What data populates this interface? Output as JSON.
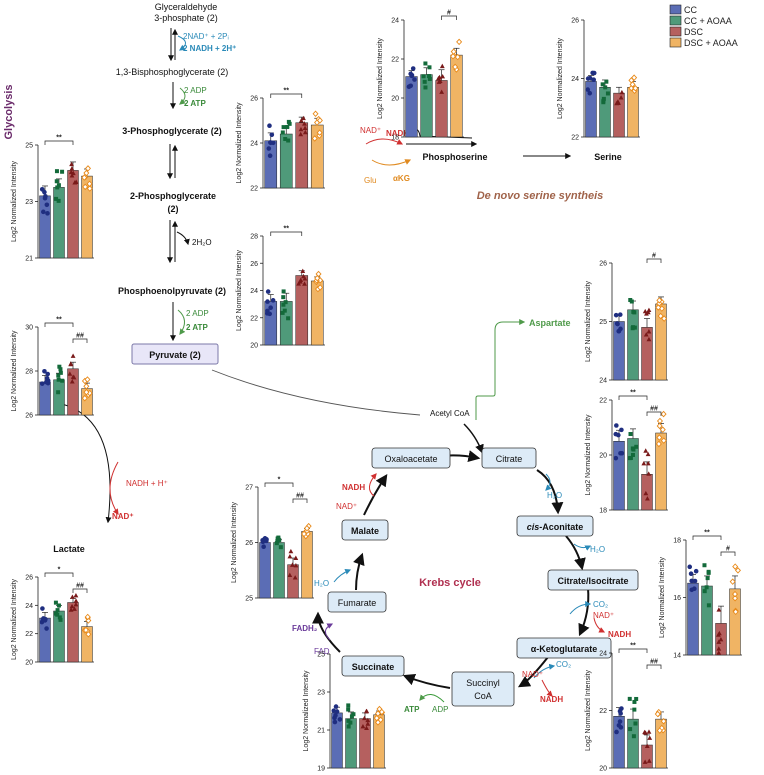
{
  "legend": [
    {
      "label": "CC",
      "color": "#5b6db5"
    },
    {
      "label": "CC + AOAA",
      "color": "#4f9a7a"
    },
    {
      "label": "DSC",
      "color": "#b5605f"
    },
    {
      "label": "DSC + AOAA",
      "color": "#f0b464"
    }
  ],
  "section_labels": {
    "glycolysis": "Glycolysis",
    "krebs": "Krebs cycle",
    "serine": "De novo serine syntheis"
  },
  "glycolysis": {
    "g3p_line1": "Glyceraldehyde",
    "g3p_line2": "3-phosphate (2)",
    "cofactor_in": "2NAD⁺ + 2Pᵢ",
    "cofactor_out": "2 NADH + 2H⁺",
    "bpg": "1,3-Bisphosphoglycerate (2)",
    "adp1": "2 ADP",
    "atp1": "2 ATP",
    "pg3": "3-Phosphoglycerate (2)",
    "pg2_line1": "2-Phosphoglycerate",
    "pg2_line2": "(2)",
    "water": "2H₂O",
    "pep": "Phosphoenolpyruvate (2)",
    "adp2": "2 ADP",
    "atp2": "2 ATP",
    "pyruvate": "Pyruvate (2)",
    "nadh_h": "NADH + H⁺",
    "nad": "NAD⁺",
    "lactate": "Lactate"
  },
  "serine_path": {
    "nad": "NAD⁺",
    "nadh": "NADH",
    "glu": "Glu",
    "akg": "αKG",
    "phosphoserine": "Phosphoserine",
    "serine": "Serine",
    "aspartate": "Aspartate",
    "acetyl_coa": "Acetyl CoA"
  },
  "krebs_nodes": {
    "oxaloacetate": "Oxaloacetate",
    "citrate": "Citrate",
    "cis_aconitate_prefix": "cis",
    "cis_aconitate_suffix": "-Aconitate",
    "citrate_isocitrate": "Citrate/Isocitrate",
    "aketoglutarate": "α-Ketoglutarate",
    "succinyl_line1": "Succinyl",
    "succinyl_line2": "CoA",
    "succinate": "Succinate",
    "fumarate": "Fumarate",
    "malate": "Malate"
  },
  "krebs_cofactors": {
    "nadh_top": "NADH",
    "nad_top": "NAD⁺",
    "h2o_citrate": "H₂O",
    "h2o_aconitate": "H₂O",
    "co2_1": "CO₂",
    "nad_1": "NAD⁺",
    "nadh_1": "NADH",
    "co2_2": "CO₂",
    "nad_2": "NAD⁺",
    "nadh_2": "NADH",
    "atp": "ATP",
    "adp": "ADP",
    "fad": "FAD",
    "fadh2": "FADH₂",
    "h2o_fumarate": "H₂O"
  },
  "y_axis_label": "Log2 Normalized Intensity",
  "chart_data": [
    {
      "id": "c3pg",
      "type": "bar",
      "categories": [
        "CC",
        "CC + AOAA",
        "DSC",
        "DSC + AOAA"
      ],
      "values": [
        23.2,
        23.5,
        24.1,
        23.9
      ],
      "errors": [
        0.35,
        0.3,
        0.3,
        0.25
      ],
      "ylim": [
        21,
        25
      ],
      "yticks": [
        21,
        23,
        25
      ],
      "sig": [
        {
          "from": 0,
          "to": 2,
          "label": "**"
        }
      ]
    },
    {
      "id": "c2pg",
      "type": "bar",
      "categories": [
        "CC",
        "CC + AOAA",
        "DSC",
        "DSC + AOAA"
      ],
      "values": [
        24.1,
        24.4,
        24.9,
        24.8
      ],
      "errors": [
        0.35,
        0.3,
        0.25,
        0.3
      ],
      "ylim": [
        22,
        26
      ],
      "yticks": [
        22,
        24,
        26
      ],
      "sig": [
        {
          "from": 0,
          "to": 2,
          "label": "**"
        }
      ]
    },
    {
      "id": "cpep",
      "type": "bar",
      "categories": [
        "CC",
        "CC + AOAA",
        "DSC",
        "DSC + AOAA"
      ],
      "values": [
        23.2,
        23.2,
        25.1,
        24.7
      ],
      "errors": [
        0.5,
        0.6,
        0.35,
        0.3
      ],
      "ylim": [
        20,
        28
      ],
      "yticks": [
        20,
        22,
        24,
        26,
        28
      ],
      "sig": [
        {
          "from": 0,
          "to": 2,
          "label": "**"
        }
      ]
    },
    {
      "id": "cpyr",
      "type": "bar",
      "categories": [
        "CC",
        "CC + AOAA",
        "DSC",
        "DSC + AOAA"
      ],
      "values": [
        27.5,
        27.6,
        28.1,
        27.2
      ],
      "errors": [
        0.3,
        0.3,
        0.3,
        0.25
      ],
      "ylim": [
        26,
        30
      ],
      "yticks": [
        26,
        28,
        30
      ],
      "sig": [
        {
          "from": 0,
          "to": 2,
          "label": "**"
        },
        {
          "from": 2,
          "to": 3,
          "label": "##"
        }
      ]
    },
    {
      "id": "clac",
      "type": "bar",
      "categories": [
        "CC",
        "CC + AOAA",
        "DSC",
        "DSC + AOAA"
      ],
      "values": [
        23.1,
        23.6,
        24.2,
        22.5
      ],
      "errors": [
        0.4,
        0.4,
        0.3,
        0.35
      ],
      "ylim": [
        20,
        26
      ],
      "yticks": [
        20,
        22,
        24,
        26
      ],
      "sig": [
        {
          "from": 0,
          "to": 2,
          "label": "*"
        },
        {
          "from": 2,
          "to": 3,
          "label": "##"
        }
      ]
    },
    {
      "id": "cpser",
      "type": "bar",
      "categories": [
        "CC",
        "CC + AOAA",
        "DSC",
        "DSC + AOAA"
      ],
      "values": [
        21.1,
        21.2,
        20.9,
        22.2
      ],
      "errors": [
        0.3,
        0.35,
        0.55,
        0.35
      ],
      "ylim": [
        18,
        24
      ],
      "yticks": [
        18,
        20,
        22,
        24
      ],
      "sig": [
        {
          "from": 2,
          "to": 3,
          "label": "#"
        }
      ]
    },
    {
      "id": "cser",
      "type": "bar",
      "categories": [
        "CC",
        "CC + AOAA",
        "DSC",
        "DSC + AOAA"
      ],
      "values": [
        23.9,
        23.7,
        23.5,
        23.7
      ],
      "errors": [
        0.2,
        0.25,
        0.2,
        0.2
      ],
      "ylim": [
        22,
        26
      ],
      "yticks": [
        22,
        24,
        26
      ],
      "sig": []
    },
    {
      "id": "casp",
      "type": "bar",
      "categories": [
        "CC",
        "CC + AOAA",
        "DSC",
        "DSC + AOAA"
      ],
      "values": [
        25.0,
        25.2,
        24.9,
        25.3
      ],
      "errors": [
        0.1,
        0.15,
        0.15,
        0.12
      ],
      "ylim": [
        24,
        26
      ],
      "yticks": [
        24,
        25,
        26
      ],
      "sig": [
        {
          "from": 2,
          "to": 3,
          "label": "#"
        }
      ]
    },
    {
      "id": "ccit",
      "type": "bar",
      "categories": [
        "CC",
        "CC + AOAA",
        "DSC",
        "DSC + AOAA"
      ],
      "values": [
        20.5,
        20.6,
        19.3,
        20.8
      ],
      "errors": [
        0.4,
        0.35,
        0.45,
        0.35
      ],
      "ylim": [
        18,
        22
      ],
      "yticks": [
        18,
        20,
        22
      ],
      "sig": [
        {
          "from": 0,
          "to": 2,
          "label": "**"
        },
        {
          "from": 2,
          "to": 3,
          "label": "##"
        }
      ]
    },
    {
      "id": "cisc",
      "type": "bar",
      "categories": [
        "CC",
        "CC + AOAA",
        "DSC",
        "DSC + AOAA"
      ],
      "values": [
        16.5,
        16.4,
        15.1,
        16.3
      ],
      "errors": [
        0.3,
        0.35,
        0.6,
        0.45
      ],
      "ylim": [
        14,
        18
      ],
      "yticks": [
        14,
        16,
        18
      ],
      "sig": [
        {
          "from": 0,
          "to": 2,
          "label": "**"
        },
        {
          "from": 2,
          "to": 3,
          "label": "#"
        }
      ]
    },
    {
      "id": "cakg",
      "type": "bar",
      "categories": [
        "CC",
        "CC + AOAA",
        "DSC",
        "DSC + AOAA"
      ],
      "values": [
        21.8,
        21.7,
        20.8,
        21.7
      ],
      "errors": [
        0.3,
        0.35,
        0.35,
        0.25
      ],
      "ylim": [
        20,
        24
      ],
      "yticks": [
        20,
        22,
        24
      ],
      "sig": [
        {
          "from": 0,
          "to": 2,
          "label": "**"
        },
        {
          "from": 2,
          "to": 3,
          "label": "##"
        }
      ]
    },
    {
      "id": "csuc",
      "type": "bar",
      "categories": [
        "CC",
        "CC + AOAA",
        "DSC",
        "DSC + AOAA"
      ],
      "values": [
        21.9,
        21.6,
        21.6,
        21.8
      ],
      "errors": [
        0.3,
        0.35,
        0.3,
        0.2
      ],
      "ylim": [
        19,
        25
      ],
      "yticks": [
        19,
        21,
        23,
        25
      ],
      "sig": []
    },
    {
      "id": "cmal",
      "type": "bar",
      "categories": [
        "CC",
        "CC + AOAA",
        "DSC",
        "DSC + AOAA"
      ],
      "values": [
        26.0,
        26.0,
        25.6,
        26.2
      ],
      "errors": [
        0.05,
        0.05,
        0.12,
        0.05
      ],
      "ylim": [
        25,
        27
      ],
      "yticks": [
        25,
        26,
        27
      ],
      "sig": [
        {
          "from": 0,
          "to": 2,
          "label": "*"
        },
        {
          "from": 2,
          "to": 3,
          "label": "##"
        }
      ]
    }
  ]
}
